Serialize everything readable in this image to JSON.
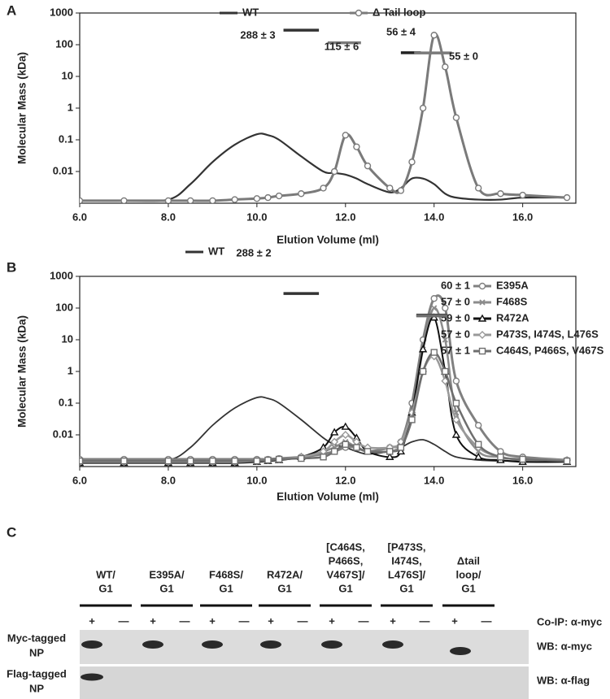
{
  "chart_data": [
    {
      "type": "line",
      "panel_label": "A",
      "y_label": "Molecular Mass (kDa)",
      "x_label": "Elution Volume (ml)",
      "log_y": true,
      "xlim": [
        6,
        17.2
      ],
      "ylim": [
        0.001,
        1000
      ],
      "xticks": [
        {
          "value": 6,
          "label": "6.0"
        },
        {
          "value": 8,
          "label": "8.0"
        },
        {
          "value": 10,
          "label": "10.0"
        },
        {
          "value": 12,
          "label": "12.0"
        },
        {
          "value": 14,
          "label": "14.0"
        },
        {
          "value": 16,
          "label": "16.0"
        }
      ],
      "yticks": [
        0.01,
        0.1,
        1,
        10,
        100,
        1000
      ],
      "x": [
        6,
        7,
        8,
        8.5,
        9,
        9.5,
        10,
        10.25,
        10.5,
        11,
        11.5,
        11.75,
        12,
        12.25,
        12.5,
        13,
        13.25,
        13.5,
        13.75,
        14,
        14.25,
        14.5,
        15,
        15.5,
        16,
        17
      ],
      "series": [
        {
          "name": "WT",
          "color": "#333333",
          "width": 2.2,
          "marker": "none",
          "values": [
            0.0012,
            0.0012,
            0.0013,
            0.004,
            0.02,
            0.07,
            0.15,
            0.14,
            0.1,
            0.03,
            0.01,
            0.009,
            0.008,
            0.006,
            0.004,
            0.0022,
            0.003,
            0.006,
            0.006,
            0.004,
            0.002,
            0.0015,
            0.0013,
            0.0013,
            0.0015,
            0.0015
          ]
        },
        {
          "name": "Δ Tail loop",
          "color": "#7a7a7a",
          "width": 3,
          "marker": "circle",
          "values": [
            0.0012,
            0.0012,
            0.0012,
            0.0012,
            0.0012,
            0.0013,
            0.0014,
            0.0015,
            0.0017,
            0.002,
            0.003,
            0.01,
            0.14,
            0.06,
            0.015,
            0.003,
            0.0025,
            0.02,
            1,
            200,
            20,
            0.5,
            0.003,
            0.002,
            0.0018,
            0.0015
          ]
        }
      ],
      "mass_bars": [
        {
          "label": "288 ± 3",
          "value": 288,
          "x": [
            10.6,
            11.4
          ],
          "color": "#333333"
        },
        {
          "label": "115 ± 6",
          "value": 115,
          "x": [
            11.6,
            12.35
          ],
          "color": "#7a7a7a"
        },
        {
          "label": "56 ± 4",
          "value": 56,
          "x": [
            13.25,
            13.7
          ],
          "color": "#222222"
        },
        {
          "label": "55 ± 0",
          "value": 55,
          "x": [
            13.55,
            14.4
          ],
          "color": "#7a7a7a"
        }
      ]
    },
    {
      "type": "line",
      "panel_label": "B",
      "y_label": "Molecular Mass (kDa)",
      "x_label": "Elution Volume (ml)",
      "log_y": true,
      "xlim": [
        6,
        17.2
      ],
      "ylim": [
        0.001,
        1000
      ],
      "xticks": [
        {
          "value": 6,
          "label": "6.0"
        },
        {
          "value": 8,
          "label": "8.0"
        },
        {
          "value": 10,
          "label": "10.0"
        },
        {
          "value": 12,
          "label": "12.0"
        },
        {
          "value": 14,
          "label": "14.0"
        },
        {
          "value": 16,
          "label": "16.0"
        }
      ],
      "yticks": [
        0.01,
        0.1,
        1,
        10,
        100,
        1000
      ],
      "x": [
        6,
        7,
        8,
        8.5,
        9,
        9.5,
        10,
        10.25,
        10.5,
        11,
        11.5,
        11.75,
        12,
        12.25,
        12.5,
        13,
        13.25,
        13.5,
        13.75,
        14,
        14.25,
        14.5,
        15,
        15.5,
        16,
        17
      ],
      "series": [
        {
          "name": "WT",
          "color": "#333333",
          "width": 1.8,
          "marker": "none",
          "values": [
            0.0015,
            0.0015,
            0.0016,
            0.004,
            0.02,
            0.07,
            0.15,
            0.14,
            0.1,
            0.03,
            0.008,
            0.005,
            0.004,
            0.003,
            0.0025,
            0.003,
            0.004,
            0.006,
            0.007,
            0.005,
            0.003,
            0.002,
            0.0016,
            0.0015,
            0.0015,
            0.0015
          ]
        },
        {
          "name": "E395A",
          "color": "#808080",
          "width": 3,
          "marker": "circle",
          "values": [
            0.0017,
            0.0017,
            0.0017,
            0.0017,
            0.0017,
            0.0017,
            0.0017,
            0.0017,
            0.0018,
            0.002,
            0.0025,
            0.003,
            0.004,
            0.004,
            0.003,
            0.004,
            0.006,
            0.1,
            10,
            200,
            100,
            0.5,
            0.02,
            0.003,
            0.002,
            0.0016
          ]
        },
        {
          "name": "F468S",
          "color": "#8c8c8c",
          "width": 2.5,
          "marker": "x",
          "values": [
            0.0013,
            0.0013,
            0.0013,
            0.0013,
            0.0013,
            0.0013,
            0.0014,
            0.0015,
            0.0016,
            0.002,
            0.003,
            0.004,
            0.006,
            0.004,
            0.003,
            0.003,
            0.005,
            0.05,
            5,
            100,
            10,
            0.05,
            0.003,
            0.002,
            0.0016,
            0.0015
          ]
        },
        {
          "name": "R472A",
          "color": "#111111",
          "width": 2,
          "marker": "triangle",
          "values": [
            0.0013,
            0.0013,
            0.0013,
            0.0013,
            0.0013,
            0.0013,
            0.0014,
            0.0015,
            0.0016,
            0.002,
            0.004,
            0.012,
            0.018,
            0.008,
            0.003,
            0.002,
            0.003,
            0.05,
            5,
            50,
            1,
            0.01,
            0.002,
            0.0016,
            0.0014,
            0.0014
          ]
        },
        {
          "name": "P473S, I474S, L476S",
          "color": "#999999",
          "width": 2.5,
          "marker": "diamond",
          "values": [
            0.0014,
            0.0014,
            0.0014,
            0.0014,
            0.0014,
            0.0014,
            0.0015,
            0.0016,
            0.0017,
            0.002,
            0.003,
            0.006,
            0.01,
            0.006,
            0.004,
            0.004,
            0.006,
            0.05,
            1,
            3,
            0.5,
            0.03,
            0.004,
            0.002,
            0.0017,
            0.0016
          ]
        },
        {
          "name": "C464S, P466S, V467S",
          "color": "#6e6e6e",
          "width": 2.5,
          "marker": "square",
          "values": [
            0.0015,
            0.0015,
            0.0015,
            0.0015,
            0.0015,
            0.0015,
            0.0015,
            0.0016,
            0.0017,
            0.0018,
            0.002,
            0.003,
            0.005,
            0.004,
            0.003,
            0.003,
            0.004,
            0.03,
            1,
            4,
            1,
            0.1,
            0.005,
            0.002,
            0.0017,
            0.0015
          ]
        }
      ],
      "mass_bars": [
        {
          "label": "288 ± 2",
          "value": 288,
          "x": [
            10.6,
            11.4
          ],
          "color": "#333333"
        },
        {
          "label": "60 ± 1",
          "value": 60,
          "x": [
            13.6,
            14.3
          ],
          "color": "#808080"
        },
        {
          "label": "57 ± 0",
          "value": 57,
          "x": [
            13.6,
            14.3
          ],
          "color": "#8c8c8c"
        },
        {
          "label": "59 ± 0",
          "value": 59,
          "x": [
            13.6,
            14.3
          ],
          "color": "#111111"
        },
        {
          "label": "57 ± 0",
          "value": 57,
          "x": [
            13.6,
            14.3
          ],
          "color": "#999999"
        },
        {
          "label": "57 ± 1",
          "value": 57,
          "x": [
            13.6,
            14.3
          ],
          "color": "#6e6e6e"
        }
      ]
    }
  ],
  "blot": {
    "panel_label": "C",
    "groups": [
      [
        "WT/",
        "G1"
      ],
      [
        "E395A/",
        "G1"
      ],
      [
        "F468S/",
        "G1"
      ],
      [
        "R472A/",
        "G1"
      ],
      [
        "[C464S,",
        "P466S,",
        "V467S]/",
        "G1"
      ],
      [
        "[P473S,",
        "I474S,",
        "L476S]/",
        "G1"
      ],
      [
        "Δtail",
        "loop/",
        "G1"
      ]
    ],
    "signs": [
      "+",
      "—"
    ],
    "row_labels": [
      [
        "Myc-tagged",
        "NP"
      ],
      [
        "Flag-tagged",
        "NP"
      ]
    ],
    "right_labels": [
      "Co-IP: α-myc",
      "WB: α-myc",
      "WB: α-flag"
    ]
  }
}
